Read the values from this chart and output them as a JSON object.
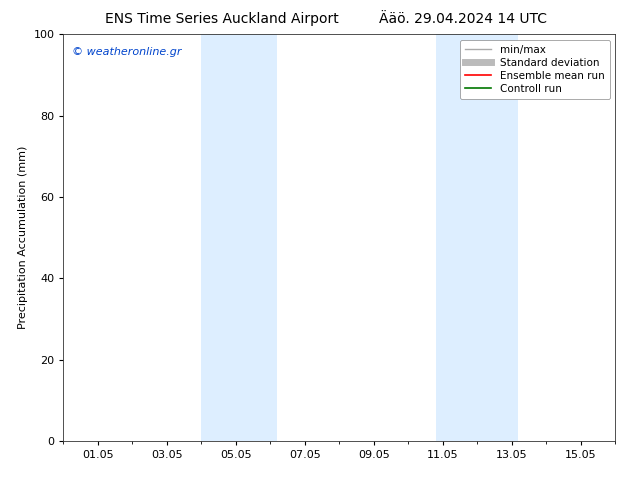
{
  "title": "ENS Time Series Auckland Airport",
  "title2": "Ääö. 29.04.2024 14 UTC",
  "ylabel": "Precipitation Accumulation (mm)",
  "watermark": "© weatheronline.gr",
  "ylim": [
    0,
    100
  ],
  "yticks": [
    0,
    20,
    40,
    60,
    80,
    100
  ],
  "xtick_labels": [
    "01.05",
    "03.05",
    "05.05",
    "07.05",
    "09.05",
    "11.05",
    "13.05",
    "15.05"
  ],
  "xtick_positions": [
    1,
    3,
    5,
    7,
    9,
    11,
    13,
    15
  ],
  "xlim": [
    0,
    16
  ],
  "shaded_regions": [
    {
      "xstart": 4.0,
      "xend": 6.2
    },
    {
      "xstart": 10.8,
      "xend": 13.2
    }
  ],
  "shaded_color": "#ddeeff",
  "legend_items": [
    {
      "label": "min/max",
      "color": "#aaaaaa",
      "lw": 1.0,
      "style": "line"
    },
    {
      "label": "Standard deviation",
      "color": "#bbbbbb",
      "lw": 5,
      "style": "line"
    },
    {
      "label": "Ensemble mean run",
      "color": "#ff0000",
      "lw": 1.2,
      "style": "line"
    },
    {
      "label": "Controll run",
      "color": "#007700",
      "lw": 1.2,
      "style": "line"
    }
  ],
  "bg_color": "#ffffff",
  "font_size_title": 10,
  "font_size_axis": 8,
  "font_size_tick": 8,
  "font_size_legend": 7.5,
  "font_size_watermark": 8,
  "watermark_color": "#0044cc"
}
